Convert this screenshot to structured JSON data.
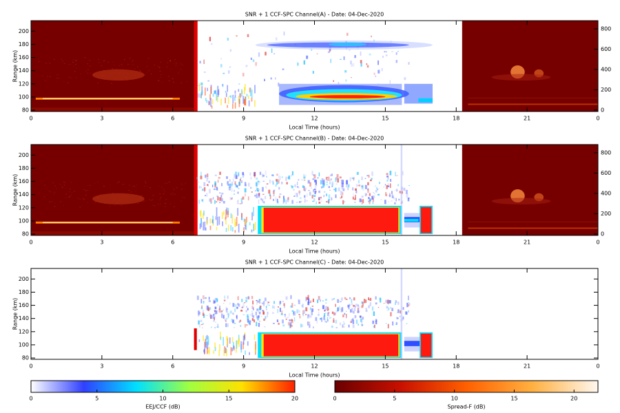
{
  "chart_data": [
    {
      "type": "heatmap",
      "title": "SNR + 1 CCF-SPC Channel(A) - Date: 04-Dec-2020",
      "xlabel": "Local Time (hours)",
      "ylabel": "Range (km)",
      "xlim": [
        0,
        24
      ],
      "xticks": [
        0,
        3,
        6,
        9,
        12,
        15,
        18,
        21,
        {
          "value": 24,
          "label": "0"
        }
      ],
      "ylim": [
        78,
        216
      ],
      "yticks": [
        80,
        100,
        120,
        140,
        160,
        180,
        200
      ],
      "y2lim": [
        -14,
        881
      ],
      "y2ticks": [
        0,
        200,
        400,
        600,
        800
      ]
    },
    {
      "type": "heatmap",
      "title": "SNR + 1 CCF-SPC Channel(B) - Date: 04-Dec-2020",
      "xlabel": "Local Time (hours)",
      "ylabel": "Range (km)",
      "xlim": [
        0,
        24
      ],
      "xticks": [
        0,
        3,
        6,
        9,
        12,
        15,
        18,
        21,
        {
          "value": 24,
          "label": "0"
        }
      ],
      "ylim": [
        78,
        216
      ],
      "yticks": [
        80,
        100,
        120,
        140,
        160,
        180,
        200
      ],
      "y2lim": [
        -14,
        881
      ],
      "y2ticks": [
        0,
        200,
        400,
        600,
        800
      ]
    },
    {
      "type": "heatmap",
      "title": "SNR + 1 CCF-SPC Channel(C) - Date: 04-Dec-2020",
      "xlabel": "Local Time (hours)",
      "ylabel": "Range (km)",
      "xlim": [
        0,
        24
      ],
      "xticks": [
        0,
        3,
        6,
        9,
        12,
        15,
        18,
        21,
        {
          "value": 24,
          "label": "0"
        }
      ],
      "ylim": [
        78,
        216
      ],
      "yticks": [
        80,
        100,
        120,
        140,
        160,
        180,
        200
      ]
    },
    {
      "type": "colorbar",
      "label": "EEJ/CCF (dB)",
      "xlim": [
        0,
        20
      ],
      "xticks": [
        0,
        5,
        10,
        15,
        20
      ],
      "colors": [
        "#ffffff",
        "#3040ff",
        "#00e0ff",
        "#a0ff40",
        "#ffe000",
        "#ff2000"
      ]
    },
    {
      "type": "colorbar",
      "label": "Spread-F (dB)",
      "xlim": [
        0,
        22
      ],
      "xticks": [
        0,
        5,
        10,
        15,
        20
      ],
      "colors": [
        "#6a0000",
        "#c81000",
        "#ff6000",
        "#ffb040",
        "#fff8f0"
      ]
    }
  ]
}
